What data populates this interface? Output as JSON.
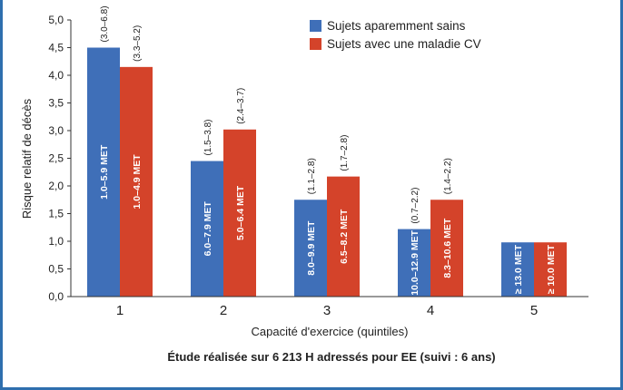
{
  "chart_data": {
    "type": "bar",
    "title": "",
    "xlabel": "Capacité d'exercice (quintiles)",
    "ylabel": "Risque relatif de décès",
    "note": "Étude réalisée sur 6 213 H adressés pour EE (suivi : 6 ans)",
    "ylim": [
      0,
      5
    ],
    "yticks": [
      "0,0",
      "0,5",
      "1,0",
      "1,5",
      "2,0",
      "2,5",
      "3,0",
      "3,5",
      "4,0",
      "4,5",
      "5,0"
    ],
    "categories": [
      "1",
      "2",
      "3",
      "4",
      "5"
    ],
    "legend_position": "top-right",
    "series": [
      {
        "name": "Sujets aparemment sains",
        "color": "#3f6fb8",
        "values": [
          4.5,
          2.45,
          1.75,
          1.22,
          0.98
        ],
        "labels": [
          "1.0–5.9 MET",
          "6.0–7.9 MET",
          "8.0–9.9 MET",
          "10.0–12.9 MET",
          "≥ 13.0 MET"
        ],
        "ci": [
          "(3.0–6.8)",
          "(1.5–3.8)",
          "(1.1–2.8)",
          "(0.7–2.2)",
          ""
        ]
      },
      {
        "name": "Sujets avec une maladie CV",
        "color": "#d4432a",
        "values": [
          4.15,
          3.02,
          2.17,
          1.75,
          0.98
        ],
        "labels": [
          "1.0–4.9 MET",
          "5.0–6.4 MET",
          "6.5–8.2 MET",
          "8.3–10.6 MET",
          "≥ 10.0 MET"
        ],
        "ci": [
          "(3.3–5.2)",
          "(2.4–3.7)",
          "(1.7–2.8)",
          "(1.4–2.2)",
          ""
        ]
      }
    ]
  }
}
